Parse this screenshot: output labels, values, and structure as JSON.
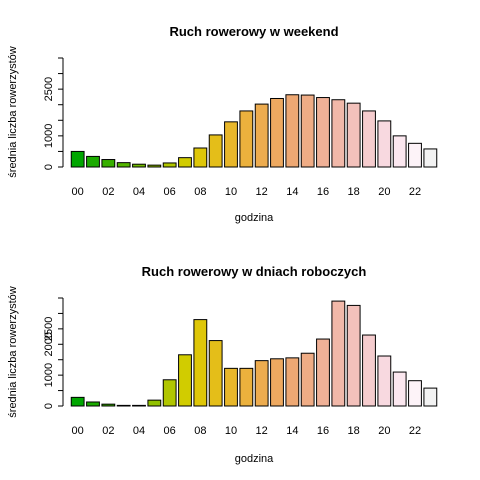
{
  "chart_data": [
    {
      "type": "bar",
      "title": "Ruch rowerowy w weekend",
      "xlabel": "godzina",
      "ylabel": "średnia liczba rowerzystów",
      "categories": [
        "00",
        "01",
        "02",
        "03",
        "04",
        "05",
        "06",
        "07",
        "08",
        "09",
        "10",
        "11",
        "12",
        "13",
        "14",
        "15",
        "16",
        "17",
        "18",
        "19",
        "20",
        "21",
        "22",
        "23"
      ],
      "x_tick_labels": [
        "00",
        "02",
        "04",
        "06",
        "08",
        "10",
        "12",
        "14",
        "16",
        "18",
        "20",
        "22"
      ],
      "values": [
        500,
        340,
        240,
        140,
        90,
        60,
        130,
        300,
        610,
        1030,
        1450,
        1800,
        2020,
        2200,
        2320,
        2310,
        2230,
        2160,
        2050,
        1800,
        1480,
        1000,
        760,
        580
      ],
      "y_ticks": [
        0,
        500,
        1000,
        1500,
        2000,
        2500,
        3000,
        3500
      ],
      "y_tick_labels": [
        "0",
        "",
        "1000",
        "",
        "2500",
        ""
      ],
      "y_tick_label_values": [
        0,
        500,
        1000,
        1500,
        2500,
        3000
      ],
      "ylim": [
        0,
        3500
      ],
      "grid": false,
      "legend": "none",
      "bar_colors": [
        "#00a600",
        "#1bab00",
        "#37b000",
        "#54b600",
        "#72bb00",
        "#91c100",
        "#b1c600",
        "#d1cc00",
        "#dfc708",
        "#e4be19",
        "#e8b72b",
        "#ebb13d",
        "#edac4f",
        "#eea960",
        "#eea873",
        "#efac85",
        "#f0b197",
        "#f1b8a9",
        "#f3c1bb",
        "#f5ccce",
        "#f8d9e0",
        "#fbe7ef",
        "#fdf3f8",
        "#f2f2f2"
      ]
    },
    {
      "type": "bar",
      "title": "Ruch rowerowy w dniach roboczych",
      "xlabel": "godzina",
      "ylabel": "średnia liczba rowerzystów",
      "categories": [
        "00",
        "01",
        "02",
        "03",
        "04",
        "05",
        "06",
        "07",
        "08",
        "09",
        "10",
        "11",
        "12",
        "13",
        "14",
        "15",
        "16",
        "17",
        "18",
        "19",
        "20",
        "21",
        "22",
        "23"
      ],
      "x_tick_labels": [
        "00",
        "02",
        "04",
        "06",
        "08",
        "10",
        "12",
        "14",
        "16",
        "18",
        "20",
        "22"
      ],
      "values": [
        280,
        130,
        60,
        20,
        20,
        190,
        850,
        1660,
        2800,
        2120,
        1220,
        1220,
        1470,
        1530,
        1560,
        1710,
        2170,
        3400,
        3260,
        2300,
        1620,
        1100,
        820,
        580
      ],
      "y_ticks": [
        0,
        500,
        1000,
        1500,
        2000,
        2500,
        3000,
        3500
      ],
      "y_tick_labels": [
        "0",
        "1000",
        "2000",
        "2500",
        ""
      ],
      "y_tick_label_values": [
        0,
        1000,
        2000,
        2500,
        3000
      ],
      "ylim": [
        0,
        3500
      ],
      "grid": false,
      "legend": "none",
      "bar_colors": [
        "#00a600",
        "#1bab00",
        "#37b000",
        "#54b600",
        "#72bb00",
        "#91c100",
        "#b1c600",
        "#d1cc00",
        "#dfc708",
        "#e4be19",
        "#e8b72b",
        "#ebb13d",
        "#edac4f",
        "#eea960",
        "#eea873",
        "#efac85",
        "#f0b197",
        "#f1b8a9",
        "#f3c1bb",
        "#f5ccce",
        "#f8d9e0",
        "#fbe7ef",
        "#fdf3f8",
        "#f2f2f2"
      ]
    }
  ]
}
